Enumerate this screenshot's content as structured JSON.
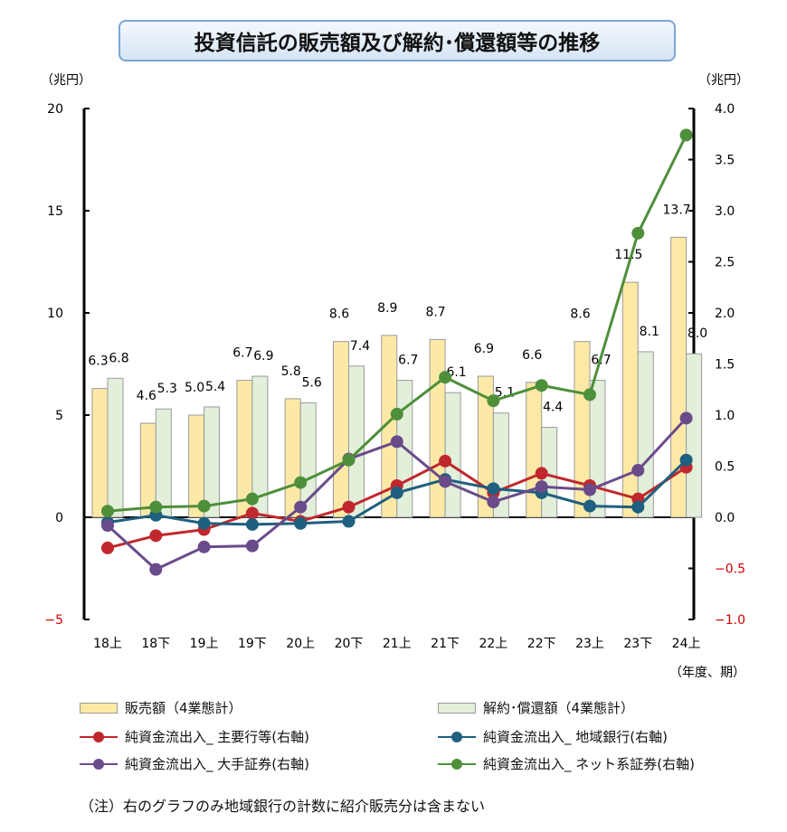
{
  "chart_data": {
    "type": "bar+line",
    "title": "投資信託の販売額及び解約･償還額等の推移",
    "ylabel_left": "（兆円）",
    "ylabel_right": "（兆円）",
    "xlabel": "（年度、期）",
    "ylim_left": [
      -5,
      20
    ],
    "ylim_right": [
      -1.0,
      4.0
    ],
    "yticks_left": [
      "20",
      "15",
      "10",
      "5",
      "0",
      "−5"
    ],
    "yticks_right": [
      "4.0",
      "3.5",
      "3.0",
      "2.5",
      "2.0",
      "1.5",
      "1.0",
      "0.5",
      "0.0",
      "−0.5",
      "−1.0"
    ],
    "categories": [
      "18上",
      "18下",
      "19上",
      "19下",
      "20上",
      "20下",
      "21上",
      "21下",
      "22上",
      "22下",
      "23上",
      "23下",
      "24上"
    ],
    "bar_series": [
      {
        "name": "販売額（4業態計）",
        "color": "#fde9a6",
        "values": [
          6.3,
          4.6,
          5.0,
          6.7,
          5.8,
          8.6,
          8.9,
          8.7,
          6.9,
          6.6,
          8.6,
          11.5,
          13.7
        ],
        "labels": [
          "6.3",
          "4.6",
          "5.0",
          "6.7",
          "5.8",
          "8.6",
          "8.9",
          "8.7",
          "6.9",
          "6.6",
          "8.6",
          "11.5",
          "13.7"
        ]
      },
      {
        "name": "解約･償還額（4業態計）",
        "color": "#e2efda",
        "values": [
          6.8,
          5.3,
          5.4,
          6.9,
          5.6,
          7.4,
          6.7,
          6.1,
          5.1,
          4.4,
          6.7,
          8.1,
          8.0
        ],
        "labels": [
          "6.8",
          "5.3",
          "5.4",
          "6.9",
          "5.6",
          "7.4",
          "6.7",
          "6.1",
          "5.1",
          "4.4",
          "6.7",
          "8.1",
          "8.0"
        ]
      }
    ],
    "line_series": [
      {
        "name": "純資金流出入_ 主要行等(右軸)",
        "color": "#c0282d",
        "values": [
          -0.3,
          -0.18,
          -0.12,
          0.04,
          -0.04,
          0.1,
          0.31,
          0.55,
          0.24,
          0.43,
          0.31,
          0.18,
          0.49
        ]
      },
      {
        "name": "純資金流出入_ 地域銀行(右軸)",
        "color": "#1f5f7f",
        "values": [
          -0.05,
          0.02,
          -0.06,
          -0.07,
          -0.06,
          -0.04,
          0.24,
          0.37,
          0.28,
          0.24,
          0.11,
          0.1,
          0.56
        ]
      },
      {
        "name": "純資金流出入_ 大手証券(右軸)",
        "color": "#6a4b8a",
        "values": [
          -0.08,
          -0.51,
          -0.29,
          -0.28,
          0.1,
          0.57,
          0.74,
          0.35,
          0.15,
          0.3,
          0.27,
          0.46,
          0.97
        ]
      },
      {
        "name": "純資金流出入_ ネット系証券(右軸)",
        "color": "#4e8f3a",
        "values": [
          0.06,
          0.1,
          0.11,
          0.18,
          0.34,
          0.56,
          1.01,
          1.37,
          1.14,
          1.29,
          1.2,
          2.78,
          3.74
        ]
      }
    ],
    "negative_tick_color": "#d00000",
    "grid": false
  },
  "note": "（注）右のグラフのみ地域銀行の計数に紹介販売分は含まない"
}
